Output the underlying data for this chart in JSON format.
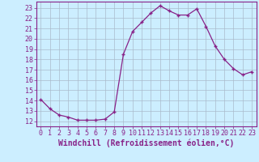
{
  "x": [
    0,
    1,
    2,
    3,
    4,
    5,
    6,
    7,
    8,
    9,
    10,
    11,
    12,
    13,
    14,
    15,
    16,
    17,
    18,
    19,
    20,
    21,
    22,
    23
  ],
  "y": [
    14.1,
    13.2,
    12.6,
    12.4,
    12.1,
    12.1,
    12.1,
    12.2,
    12.9,
    18.5,
    20.7,
    21.6,
    22.5,
    23.2,
    22.7,
    22.3,
    22.3,
    22.9,
    21.2,
    19.3,
    18.0,
    17.1,
    16.5,
    16.8
  ],
  "line_color": "#882288",
  "marker": "+",
  "marker_size": 3,
  "marker_linewidth": 1.0,
  "bg_color": "#cceeff",
  "grid_color": "#aabbcc",
  "xlabel": "Windchill (Refroidissement éolien,°C)",
  "xlabel_fontsize": 7,
  "yticks": [
    12,
    13,
    14,
    15,
    16,
    17,
    18,
    19,
    20,
    21,
    22,
    23
  ],
  "xlim": [
    -0.5,
    23.5
  ],
  "ylim": [
    11.5,
    23.6
  ],
  "tick_fontsize": 6,
  "linewidth": 0.9
}
